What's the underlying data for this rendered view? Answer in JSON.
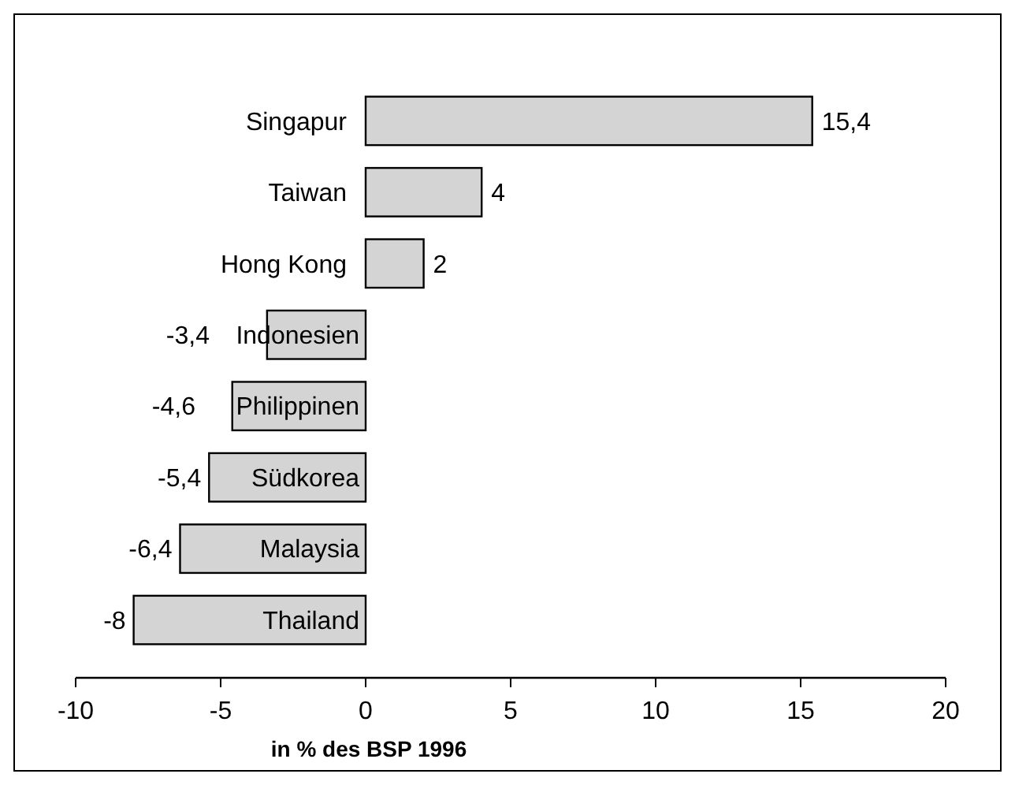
{
  "chart_data": {
    "type": "bar",
    "orientation": "horizontal",
    "xlabel": "in % des BSP 1996",
    "categories": [
      "Singapur",
      "Taiwan",
      "Hong Kong",
      "Indonesien",
      "Philippinen",
      "Südkorea",
      "Malaysia",
      "Thailand"
    ],
    "values": [
      15.4,
      4,
      2,
      -3.4,
      -4.6,
      -5.4,
      -6.4,
      -8
    ],
    "value_labels": [
      "15,4",
      "4",
      "2",
      "-3,4",
      "-4,6",
      "-5,4",
      "-6,4",
      "-8"
    ],
    "color": "#d4d4d4",
    "xlim": [
      -10,
      20
    ],
    "xticks": [
      -10,
      -5,
      0,
      5,
      10,
      15,
      20
    ],
    "grid": false
  }
}
